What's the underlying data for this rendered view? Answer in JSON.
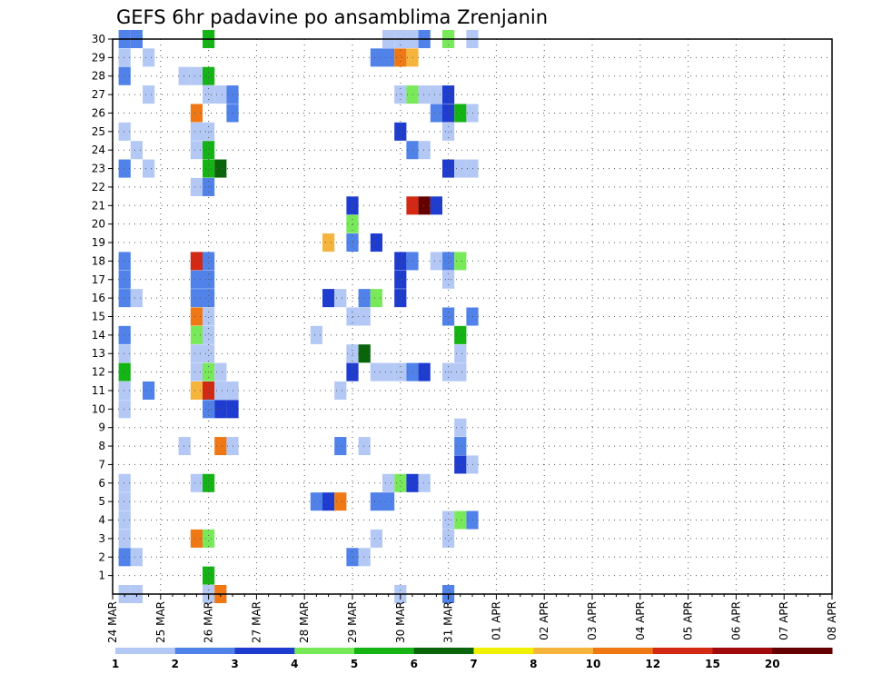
{
  "chart_data": {
    "type": "heatmap",
    "title": "GEFS 6hr padavine po ansamblima Zrenjanin",
    "xlabel": "",
    "ylabel": "",
    "x_tick_labels": [
      "24 MAR",
      "25 MAR",
      "26 MAR",
      "27 MAR",
      "28 MAR",
      "29 MAR",
      "30 MAR",
      "31 MAR",
      "01 APR",
      "02 APR",
      "03 APR",
      "04 APR",
      "05 APR",
      "06 APR",
      "07 APR",
      "08 APR"
    ],
    "x_range_days": [
      0,
      15
    ],
    "time_step_hours": 6,
    "y_tick_labels": [
      "1",
      "2",
      "3",
      "4",
      "5",
      "6",
      "7",
      "8",
      "9",
      "10",
      "11",
      "12",
      "13",
      "14",
      "15",
      "16",
      "17",
      "18",
      "19",
      "20",
      "21",
      "22",
      "23",
      "24",
      "25",
      "26",
      "27",
      "28",
      "29",
      "30"
    ],
    "y_range": [
      0,
      30
    ],
    "grid": true,
    "colorbar": {
      "labels": [
        "1",
        "2",
        "3",
        "4",
        "5",
        "6",
        "7",
        "8",
        "10",
        "12",
        "15",
        "20"
      ],
      "colors": [
        "#b4c8f5",
        "#5082ea",
        "#1e3ccf",
        "#78ea5a",
        "#14b414",
        "#0a640a",
        "#f0f000",
        "#f5b43c",
        "#f07814",
        "#d22814",
        "#a00a0a",
        "#640000"
      ]
    },
    "cells": [
      [
        1,
        30,
        2
      ],
      [
        2,
        30,
        2
      ],
      [
        8,
        30,
        5
      ],
      [
        23,
        30,
        1
      ],
      [
        24,
        30,
        1
      ],
      [
        25,
        30,
        1
      ],
      [
        26,
        30,
        2
      ],
      [
        28,
        30,
        4
      ],
      [
        30,
        30,
        1
      ],
      [
        1,
        29,
        1
      ],
      [
        3,
        29,
        1
      ],
      [
        22,
        29,
        2
      ],
      [
        23,
        29,
        2
      ],
      [
        24,
        29,
        10
      ],
      [
        25,
        29,
        8
      ],
      [
        1,
        28,
        2
      ],
      [
        6,
        28,
        1
      ],
      [
        7,
        28,
        1
      ],
      [
        8,
        28,
        5
      ],
      [
        3,
        27,
        1
      ],
      [
        8,
        27,
        1
      ],
      [
        9,
        27,
        1
      ],
      [
        10,
        27,
        2
      ],
      [
        24,
        27,
        1
      ],
      [
        25,
        27,
        4
      ],
      [
        26,
        27,
        1
      ],
      [
        27,
        27,
        1
      ],
      [
        28,
        27,
        3
      ],
      [
        7,
        26,
        10
      ],
      [
        10,
        26,
        2
      ],
      [
        27,
        26,
        2
      ],
      [
        28,
        26,
        3
      ],
      [
        29,
        26,
        5
      ],
      [
        30,
        26,
        1
      ],
      [
        1,
        25,
        1
      ],
      [
        7,
        25,
        1
      ],
      [
        8,
        25,
        1
      ],
      [
        24,
        25,
        3
      ],
      [
        28,
        25,
        1
      ],
      [
        2,
        24,
        1
      ],
      [
        7,
        24,
        1
      ],
      [
        8,
        24,
        5
      ],
      [
        25,
        24,
        2
      ],
      [
        26,
        24,
        1
      ],
      [
        1,
        23,
        2
      ],
      [
        3,
        23,
        1
      ],
      [
        8,
        23,
        5
      ],
      [
        9,
        23,
        6
      ],
      [
        28,
        23,
        3
      ],
      [
        29,
        23,
        1
      ],
      [
        30,
        23,
        1
      ],
      [
        7,
        22,
        1
      ],
      [
        8,
        22,
        2
      ],
      [
        20,
        21,
        3
      ],
      [
        25,
        21,
        12
      ],
      [
        26,
        21,
        20
      ],
      [
        27,
        21,
        3
      ],
      [
        20,
        20,
        4
      ],
      [
        18,
        19,
        8
      ],
      [
        20,
        19,
        2
      ],
      [
        22,
        19,
        3
      ],
      [
        1,
        18,
        2
      ],
      [
        7,
        18,
        1
      ],
      [
        7,
        18,
        12
      ],
      [
        8,
        18,
        2
      ],
      [
        24,
        18,
        3
      ],
      [
        25,
        18,
        2
      ],
      [
        27,
        18,
        1
      ],
      [
        28,
        18,
        2
      ],
      [
        29,
        18,
        4
      ],
      [
        1,
        17,
        2
      ],
      [
        7,
        17,
        2
      ],
      [
        8,
        17,
        2
      ],
      [
        24,
        17,
        3
      ],
      [
        28,
        17,
        1
      ],
      [
        1,
        16,
        2
      ],
      [
        2,
        16,
        1
      ],
      [
        7,
        16,
        2
      ],
      [
        8,
        16,
        2
      ],
      [
        18,
        16,
        3
      ],
      [
        19,
        16,
        1
      ],
      [
        21,
        16,
        2
      ],
      [
        22,
        16,
        4
      ],
      [
        24,
        16,
        3
      ],
      [
        20,
        15,
        1
      ],
      [
        21,
        15,
        1
      ],
      [
        7,
        15,
        10
      ],
      [
        8,
        15,
        1
      ],
      [
        28,
        15,
        2
      ],
      [
        30,
        15,
        2
      ],
      [
        1,
        14,
        2
      ],
      [
        7,
        14,
        4
      ],
      [
        8,
        14,
        1
      ],
      [
        17,
        14,
        1
      ],
      [
        29,
        14,
        5
      ],
      [
        1,
        13,
        1
      ],
      [
        7,
        13,
        1
      ],
      [
        8,
        13,
        1
      ],
      [
        20,
        13,
        1
      ],
      [
        21,
        13,
        1
      ],
      [
        21,
        13,
        6
      ],
      [
        29,
        13,
        1
      ],
      [
        1,
        12,
        5
      ],
      [
        7,
        12,
        1
      ],
      [
        8,
        12,
        4
      ],
      [
        9,
        12,
        1
      ],
      [
        20,
        12,
        3
      ],
      [
        22,
        12,
        1
      ],
      [
        23,
        12,
        1
      ],
      [
        24,
        12,
        1
      ],
      [
        25,
        12,
        2
      ],
      [
        26,
        12,
        3
      ],
      [
        28,
        12,
        1
      ],
      [
        29,
        12,
        1
      ],
      [
        29,
        12,
        1
      ],
      [
        1,
        11,
        1
      ],
      [
        3,
        11,
        2
      ],
      [
        7,
        11,
        8
      ],
      [
        8,
        11,
        12
      ],
      [
        9,
        11,
        1
      ],
      [
        10,
        11,
        1
      ],
      [
        19,
        11,
        1
      ],
      [
        1,
        10,
        1
      ],
      [
        8,
        10,
        2
      ],
      [
        9,
        10,
        3
      ],
      [
        10,
        10,
        3
      ],
      [
        29,
        9,
        1
      ],
      [
        6,
        8,
        1
      ],
      [
        9,
        8,
        10
      ],
      [
        10,
        8,
        1
      ],
      [
        19,
        8,
        2
      ],
      [
        21,
        8,
        1
      ],
      [
        29,
        8,
        2
      ],
      [
        29,
        7,
        3
      ],
      [
        30,
        7,
        1
      ],
      [
        1,
        6,
        1
      ],
      [
        7,
        6,
        1
      ],
      [
        8,
        6,
        5
      ],
      [
        23,
        6,
        1
      ],
      [
        24,
        6,
        4
      ],
      [
        25,
        6,
        3
      ],
      [
        26,
        6,
        1
      ],
      [
        1,
        5,
        1
      ],
      [
        17,
        5,
        2
      ],
      [
        18,
        5,
        3
      ],
      [
        19,
        5,
        10
      ],
      [
        22,
        5,
        2
      ],
      [
        23,
        5,
        2
      ],
      [
        1,
        4,
        1
      ],
      [
        28,
        4,
        1
      ],
      [
        29,
        4,
        4
      ],
      [
        30,
        4,
        2
      ],
      [
        1,
        3,
        1
      ],
      [
        7,
        3,
        10
      ],
      [
        8,
        3,
        4
      ],
      [
        22,
        3,
        1
      ],
      [
        28,
        3,
        1
      ],
      [
        1,
        2,
        2
      ],
      [
        2,
        2,
        1
      ],
      [
        20,
        2,
        2
      ],
      [
        21,
        2,
        1
      ],
      [
        8,
        1,
        5
      ],
      [
        1,
        0,
        1
      ],
      [
        2,
        0,
        1
      ],
      [
        8,
        0,
        1
      ],
      [
        9,
        0,
        10
      ],
      [
        24,
        0,
        1
      ],
      [
        28,
        0,
        2
      ]
    ]
  }
}
